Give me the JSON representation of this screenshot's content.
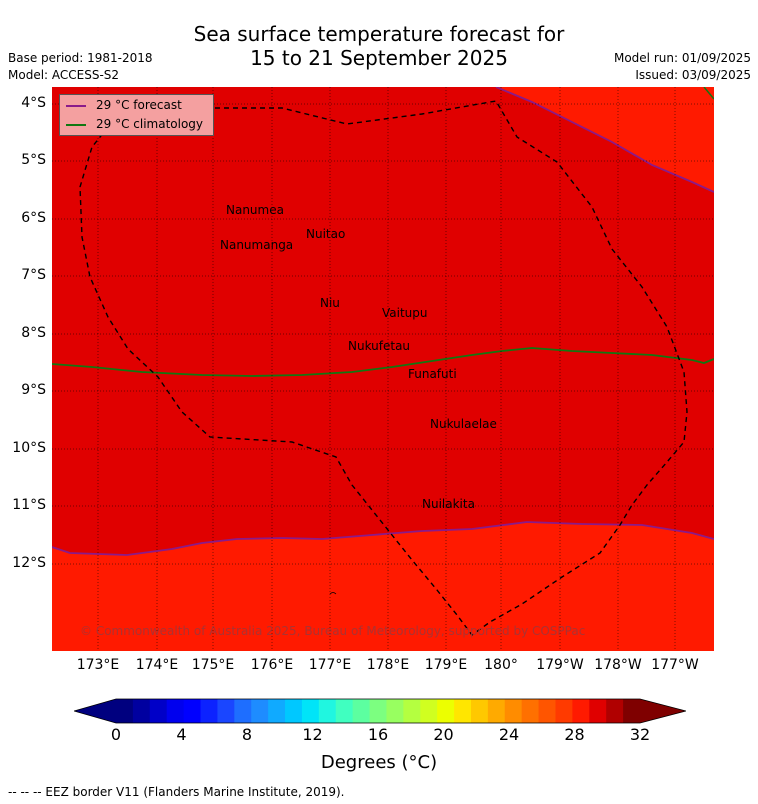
{
  "title": {
    "line1": "Sea surface temperature forecast for",
    "line2": "15 to 21 September 2025"
  },
  "meta": {
    "base_period": "Base period: 1981-2018",
    "model": "Model: ACCESS-S2",
    "model_run": "Model run: 01/09/2025",
    "issued": "Issued: 03/09/2025"
  },
  "legend": {
    "forecast_label": "29 °C  forecast",
    "forecast_color": "#8a1a8a",
    "climatology_label": "29 °C  climatology",
    "climatology_color": "#117711"
  },
  "map": {
    "lat_labels": [
      "4°S",
      "5°S",
      "6°S",
      "7°S",
      "8°S",
      "9°S",
      "10°S",
      "11°S",
      "12°S"
    ],
    "lon_labels": [
      "173°E",
      "174°E",
      "175°E",
      "176°E",
      "177°E",
      "178°E",
      "179°E",
      "180°",
      "179°W",
      "178°W",
      "177°W"
    ],
    "places": [
      "Nanumea",
      "Nuitao",
      "Nanumanga",
      "Niu",
      "Vaitupu",
      "Nukufetau",
      "Funafuti",
      "Nukulaelae",
      "Nuilakita"
    ],
    "fill_colors": {
      "warm": "#e00000",
      "cooler": "#ff1a00"
    },
    "copyright": "© Commonwealth of Australia 2025, Bureau of Meteorology, supported by COSPPac"
  },
  "colorbar": {
    "ticks": [
      "0",
      "4",
      "8",
      "12",
      "16",
      "20",
      "24",
      "28",
      "32"
    ],
    "label": "Degrees (°C)",
    "colors": [
      "#00007f",
      "#0000a0",
      "#0000c8",
      "#0000ee",
      "#0000ff",
      "#0c22ff",
      "#1a46ff",
      "#1e6eff",
      "#1e8cff",
      "#10aaff",
      "#00c8ff",
      "#00e4f8",
      "#20f6e0",
      "#40ffc0",
      "#5cffa0",
      "#7cff80",
      "#98ff60",
      "#b4ff40",
      "#d0ff20",
      "#ecff00",
      "#ffe600",
      "#ffc800",
      "#ffaa00",
      "#ff8c00",
      "#ff7000",
      "#ff5500",
      "#ff3a00",
      "#ff1a00",
      "#e00000",
      "#b00000",
      "#7f0000"
    ],
    "under_color": "#00007f",
    "over_color": "#7f0000"
  },
  "footer": "--  --  -- EEZ border V11 (Flanders Marine Institute, 2019)."
}
